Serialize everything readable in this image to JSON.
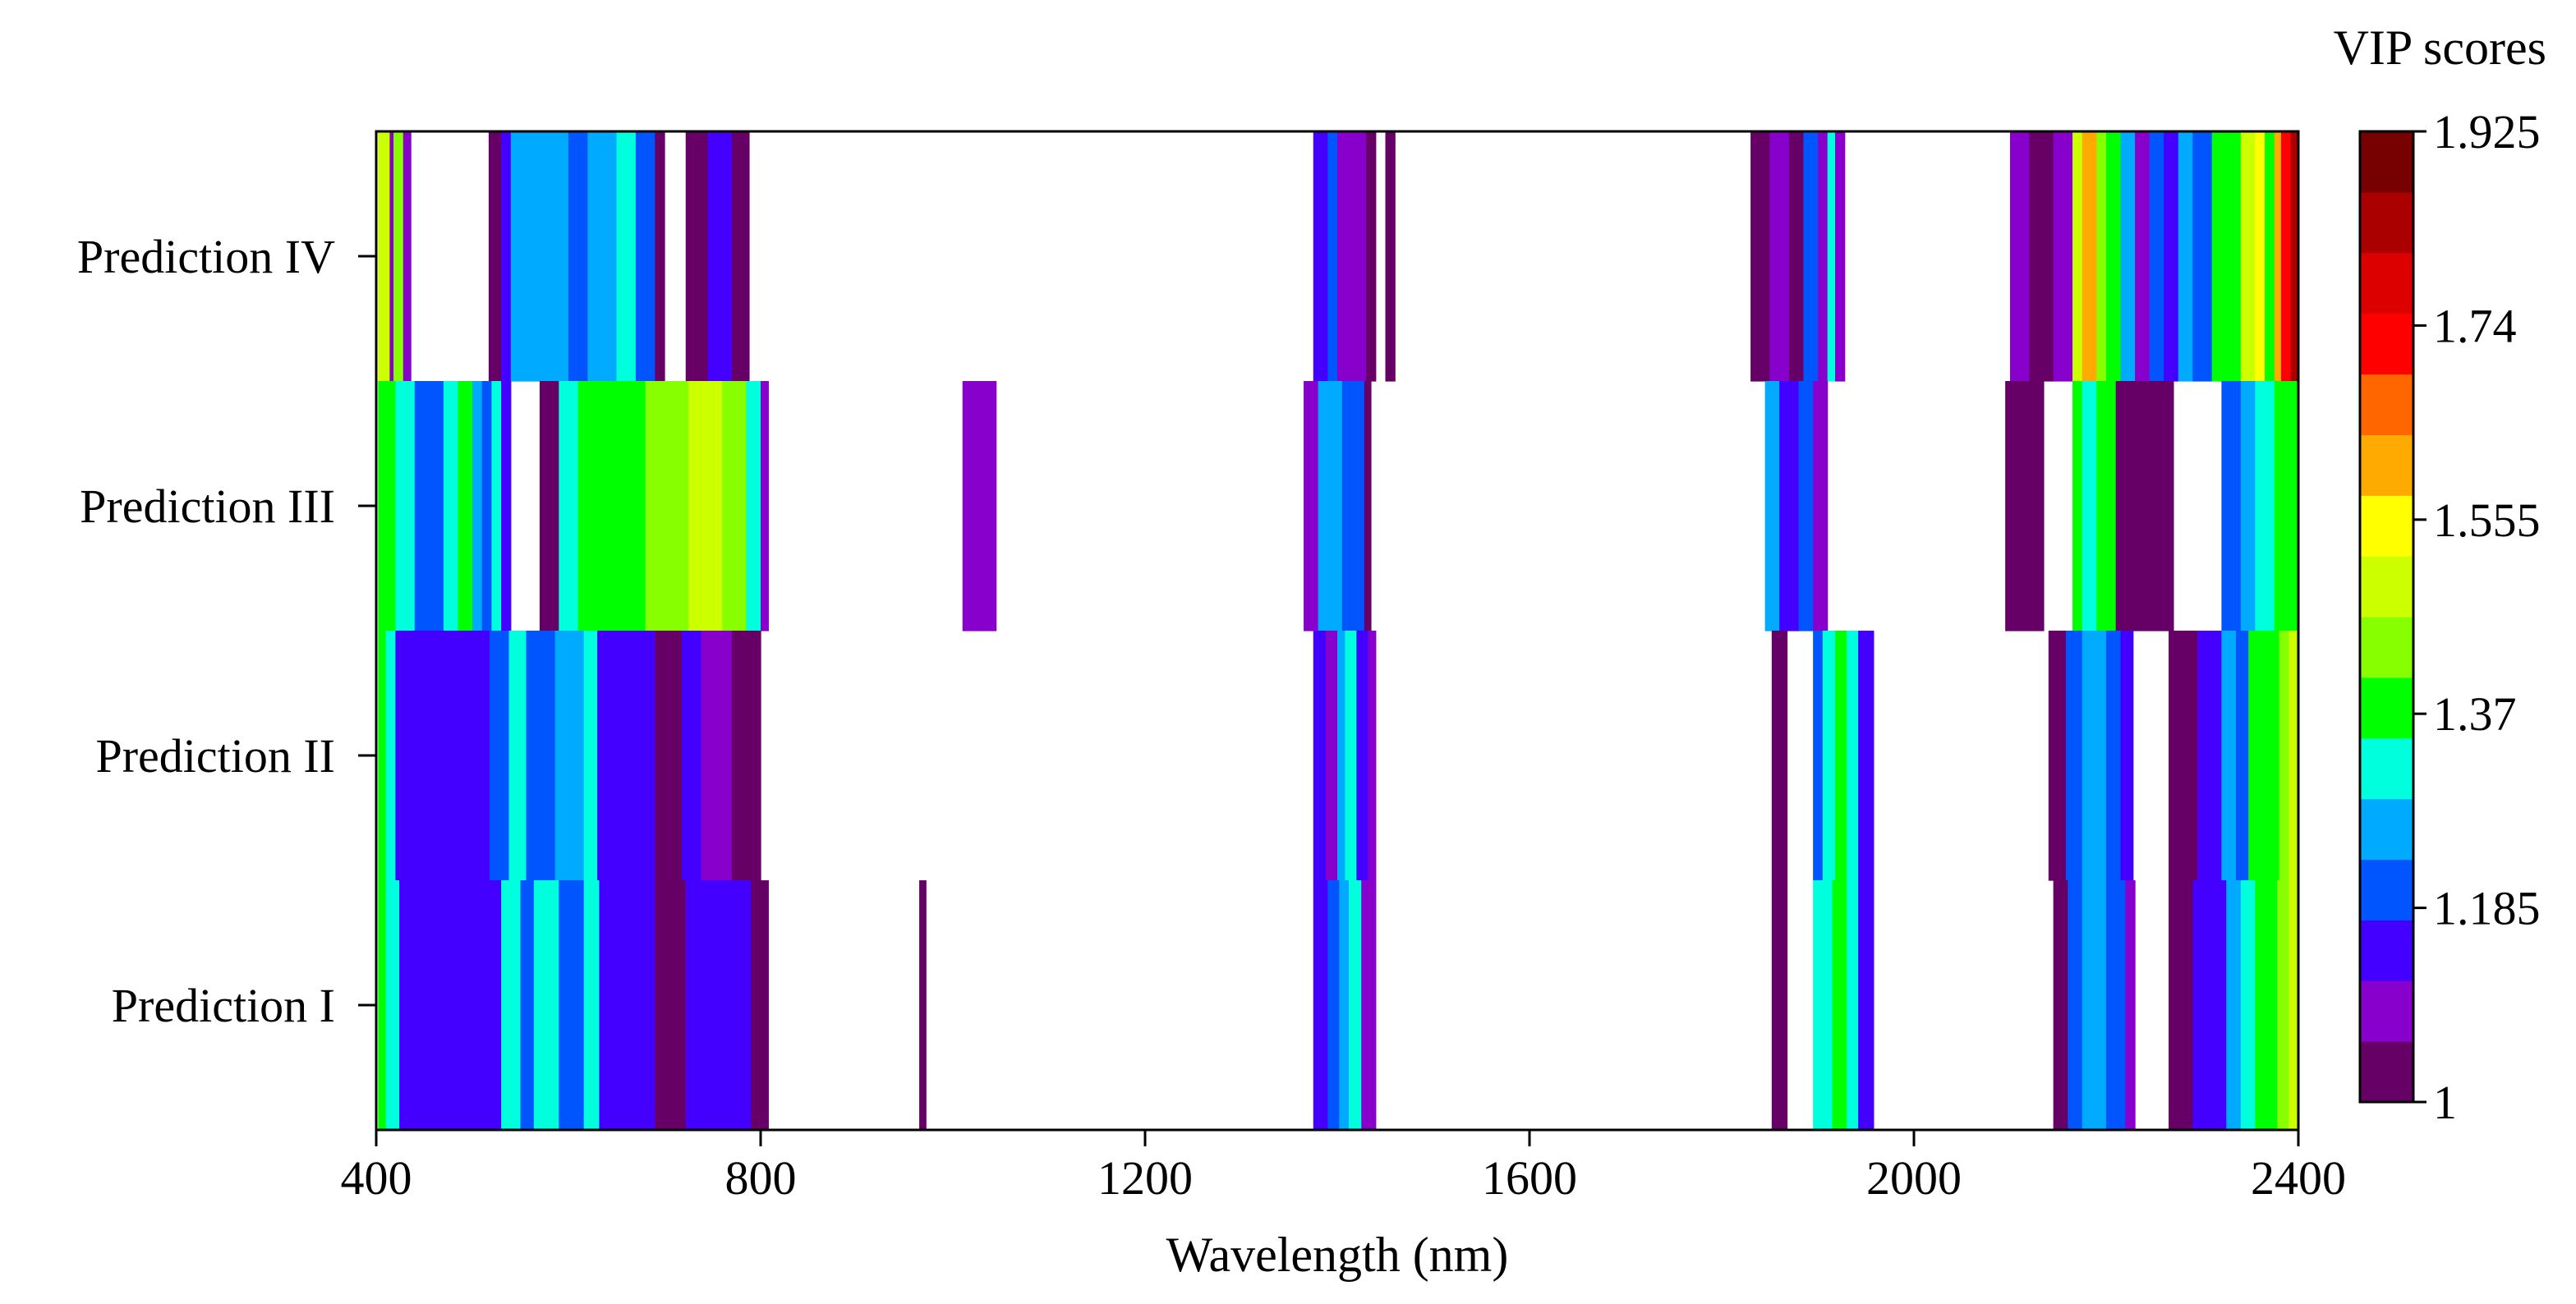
{
  "chart_data": {
    "type": "heatmap",
    "title": "",
    "xlabel": "Wavelength (nm)",
    "ylabel": "",
    "xlim": [
      400,
      2400
    ],
    "x_ticks": [
      400,
      800,
      1200,
      1600,
      2000,
      2400
    ],
    "rows": [
      "Prediction IV",
      "Prediction III",
      "Prediction II",
      "Prediction I"
    ],
    "colorbar": {
      "title": "VIP scores",
      "range": [
        1,
        1.925
      ],
      "tick_values": [
        1.925,
        1.74,
        1.555,
        1.37,
        1.185,
        1
      ],
      "tick_labels": [
        "1.925",
        "1.74",
        "1.555",
        "1.37",
        "1.185",
        "1"
      ],
      "colors": [
        "#660066",
        "#8800cc",
        "#4400ff",
        "#0055ff",
        "#00aaff",
        "#00ffdd",
        "#00ff00",
        "#88ff00",
        "#ccff00",
        "#ffff00",
        "#ffaa00",
        "#ff6600",
        "#ff0000",
        "#dd0000",
        "#aa0000",
        "#770000"
      ]
    },
    "series": [
      {
        "name": "Prediction IV",
        "segments": [
          [
            402,
            414,
            1.5
          ],
          [
            414,
            418,
            1.1
          ],
          [
            418,
            428,
            1.45
          ],
          [
            428,
            436,
            1.1
          ],
          [
            517,
            530,
            1.05
          ],
          [
            530,
            540,
            1.15
          ],
          [
            540,
            560,
            1.27
          ],
          [
            560,
            580,
            1.25
          ],
          [
            580,
            600,
            1.27
          ],
          [
            600,
            620,
            1.2
          ],
          [
            620,
            650,
            1.27
          ],
          [
            650,
            670,
            1.3
          ],
          [
            670,
            690,
            1.2
          ],
          [
            690,
            700,
            1.05
          ],
          [
            722,
            745,
            1.05
          ],
          [
            745,
            770,
            1.12
          ],
          [
            770,
            788,
            1.05
          ],
          [
            1375,
            1390,
            1.12
          ],
          [
            1390,
            1400,
            1.2
          ],
          [
            1400,
            1430,
            1.1
          ],
          [
            1430,
            1440,
            1.05
          ],
          [
            1450,
            1460,
            1.05
          ],
          [
            1830,
            1850,
            1.05
          ],
          [
            1850,
            1870,
            1.1
          ],
          [
            1870,
            1885,
            1.05
          ],
          [
            1885,
            1900,
            1.2
          ],
          [
            1900,
            1910,
            1.1
          ],
          [
            1910,
            1918,
            1.3
          ],
          [
            1918,
            1928,
            1.1
          ],
          [
            2100,
            2120,
            1.1
          ],
          [
            2120,
            2145,
            1.05
          ],
          [
            2145,
            2165,
            1.1
          ],
          [
            2165,
            2175,
            1.5
          ],
          [
            2175,
            2190,
            1.6
          ],
          [
            2190,
            2200,
            1.45
          ],
          [
            2200,
            2215,
            1.35
          ],
          [
            2215,
            2230,
            1.25
          ],
          [
            2230,
            2245,
            1.1
          ],
          [
            2245,
            2260,
            1.2
          ],
          [
            2260,
            2275,
            1.15
          ],
          [
            2275,
            2290,
            1.25
          ],
          [
            2290,
            2310,
            1.2
          ],
          [
            2310,
            2325,
            1.35
          ],
          [
            2325,
            2340,
            1.4
          ],
          [
            2340,
            2355,
            1.5
          ],
          [
            2355,
            2365,
            1.55
          ],
          [
            2365,
            2375,
            1.4
          ],
          [
            2375,
            2382,
            1.6
          ],
          [
            2382,
            2392,
            1.7
          ],
          [
            2392,
            2400,
            1.85
          ]
        ]
      },
      {
        "name": "Prediction III",
        "segments": [
          [
            402,
            420,
            1.35
          ],
          [
            420,
            440,
            1.3
          ],
          [
            440,
            470,
            1.22
          ],
          [
            470,
            485,
            1.3
          ],
          [
            485,
            500,
            1.35
          ],
          [
            500,
            510,
            1.28
          ],
          [
            510,
            520,
            1.2
          ],
          [
            520,
            530,
            1.3
          ],
          [
            530,
            540,
            1.15
          ],
          [
            570,
            590,
            1.05
          ],
          [
            590,
            610,
            1.3
          ],
          [
            610,
            640,
            1.35
          ],
          [
            640,
            680,
            1.4
          ],
          [
            680,
            700,
            1.45
          ],
          [
            700,
            725,
            1.45
          ],
          [
            725,
            760,
            1.5
          ],
          [
            760,
            785,
            1.45
          ],
          [
            785,
            800,
            1.3
          ],
          [
            800,
            808,
            1.1
          ],
          [
            1010,
            1045,
            1.1
          ],
          [
            1365,
            1380,
            1.1
          ],
          [
            1380,
            1405,
            1.25
          ],
          [
            1405,
            1428,
            1.2
          ],
          [
            1428,
            1435,
            1.05
          ],
          [
            1845,
            1860,
            1.25
          ],
          [
            1860,
            1880,
            1.15
          ],
          [
            1880,
            1895,
            1.2
          ],
          [
            1895,
            1910,
            1.1
          ],
          [
            2095,
            2135,
            1.05
          ],
          [
            2165,
            2175,
            1.35
          ],
          [
            2175,
            2190,
            1.3
          ],
          [
            2190,
            2210,
            1.35
          ],
          [
            2210,
            2270,
            1.05
          ],
          [
            2320,
            2340,
            1.2
          ],
          [
            2340,
            2355,
            1.25
          ],
          [
            2355,
            2375,
            1.3
          ],
          [
            2375,
            2385,
            1.35
          ],
          [
            2385,
            2400,
            1.4
          ]
        ]
      },
      {
        "name": "Prediction II",
        "segments": [
          [
            402,
            410,
            1.4
          ],
          [
            410,
            420,
            1.3
          ],
          [
            420,
            518,
            1.14
          ],
          [
            518,
            538,
            1.22
          ],
          [
            538,
            556,
            1.3
          ],
          [
            556,
            586,
            1.22
          ],
          [
            586,
            616,
            1.25
          ],
          [
            616,
            630,
            1.3
          ],
          [
            630,
            690,
            1.15
          ],
          [
            690,
            718,
            1.05
          ],
          [
            718,
            738,
            1.15
          ],
          [
            738,
            770,
            1.1
          ],
          [
            770,
            800,
            1.05
          ],
          [
            1375,
            1388,
            1.15
          ],
          [
            1388,
            1400,
            1.1
          ],
          [
            1400,
            1408,
            1.25
          ],
          [
            1408,
            1420,
            1.3
          ],
          [
            1420,
            1432,
            1.12
          ],
          [
            1432,
            1440,
            1.08
          ],
          [
            1852,
            1868,
            1.05
          ],
          [
            1895,
            1905,
            1.2
          ],
          [
            1905,
            1918,
            1.3
          ],
          [
            1918,
            1930,
            1.35
          ],
          [
            1930,
            1942,
            1.3
          ],
          [
            1942,
            1958,
            1.15
          ],
          [
            2140,
            2158,
            1.05
          ],
          [
            2158,
            2175,
            1.2
          ],
          [
            2175,
            2200,
            1.25
          ],
          [
            2200,
            2215,
            1.2
          ],
          [
            2215,
            2228,
            1.15
          ],
          [
            2265,
            2295,
            1.05
          ],
          [
            2295,
            2320,
            1.15
          ],
          [
            2320,
            2335,
            1.25
          ],
          [
            2335,
            2348,
            1.2
          ],
          [
            2348,
            2362,
            1.35
          ],
          [
            2362,
            2380,
            1.4
          ],
          [
            2380,
            2390,
            1.45
          ],
          [
            2390,
            2400,
            1.5
          ]
        ]
      },
      {
        "name": "Prediction I",
        "segments": [
          [
            402,
            410,
            1.4
          ],
          [
            410,
            424,
            1.3
          ],
          [
            424,
            530,
            1.14
          ],
          [
            530,
            550,
            1.3
          ],
          [
            550,
            564,
            1.22
          ],
          [
            564,
            590,
            1.3
          ],
          [
            590,
            616,
            1.22
          ],
          [
            616,
            632,
            1.3
          ],
          [
            632,
            690,
            1.15
          ],
          [
            690,
            722,
            1.05
          ],
          [
            722,
            790,
            1.14
          ],
          [
            790,
            808,
            1.05
          ],
          [
            965,
            972,
            1.05
          ],
          [
            1375,
            1390,
            1.12
          ],
          [
            1390,
            1402,
            1.18
          ],
          [
            1402,
            1412,
            1.25
          ],
          [
            1412,
            1425,
            1.3
          ],
          [
            1425,
            1440,
            1.1
          ],
          [
            1852,
            1868,
            1.05
          ],
          [
            1895,
            1915,
            1.3
          ],
          [
            1915,
            1930,
            1.35
          ],
          [
            1930,
            1942,
            1.3
          ],
          [
            1942,
            1958,
            1.15
          ],
          [
            2145,
            2160,
            1.05
          ],
          [
            2160,
            2175,
            1.2
          ],
          [
            2175,
            2200,
            1.28
          ],
          [
            2200,
            2220,
            1.2
          ],
          [
            2220,
            2230,
            1.1
          ],
          [
            2265,
            2290,
            1.05
          ],
          [
            2290,
            2325,
            1.15
          ],
          [
            2325,
            2340,
            1.25
          ],
          [
            2340,
            2355,
            1.3
          ],
          [
            2355,
            2378,
            1.35
          ],
          [
            2378,
            2390,
            1.45
          ],
          [
            2390,
            2400,
            1.5
          ]
        ]
      }
    ]
  }
}
